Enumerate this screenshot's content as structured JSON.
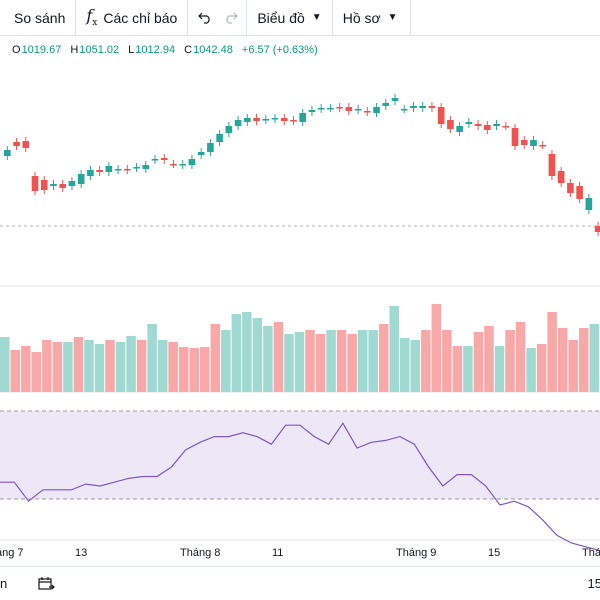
{
  "toolbar": {
    "compare_label": "So sánh",
    "indicators_label": "Các chỉ báo",
    "chart_label": "Biểu đồ",
    "profile_label": "Hồ sơ"
  },
  "ohlc": {
    "open_key": "O",
    "open": "1019.67",
    "high_key": "H",
    "high": "1051.02",
    "low_key": "L",
    "low": "1012.94",
    "close_key": "C",
    "close": "1042.48",
    "change": "+6.57 (+0.63%)"
  },
  "time_axis": [
    "áng 7",
    "13",
    "Tháng 8",
    "11",
    "Tháng 9",
    "15",
    "Thá"
  ],
  "bottom": {
    "left_fragment": "n",
    "right_fragment": "15"
  },
  "colors": {
    "up": "#26a69a",
    "down": "#ef5350",
    "up_volume": "#9fd9d2",
    "down_volume": "#f8a8a8",
    "rsi_line": "#7e57c2",
    "rsi_band": "#ede7f6"
  },
  "chart_data": {
    "type": "candlestick",
    "candles": [
      {
        "o": 0.8,
        "c": 0.86,
        "up": true
      },
      {
        "o": 0.94,
        "c": 0.9,
        "up": false
      },
      {
        "o": 0.95,
        "c": 0.88,
        "up": false
      },
      {
        "o": 0.6,
        "c": 0.45,
        "up": false
      },
      {
        "o": 0.56,
        "c": 0.46,
        "up": false
      },
      {
        "o": 0.5,
        "c": 0.52,
        "up": true
      },
      {
        "o": 0.48,
        "c": 0.52,
        "up": false
      },
      {
        "o": 0.5,
        "c": 0.55,
        "up": true
      },
      {
        "o": 0.52,
        "c": 0.62,
        "up": true
      },
      {
        "o": 0.6,
        "c": 0.66,
        "up": true
      },
      {
        "o": 0.66,
        "c": 0.64,
        "up": false
      },
      {
        "o": 0.64,
        "c": 0.7,
        "up": true
      },
      {
        "o": 0.66,
        "c": 0.67,
        "up": true
      },
      {
        "o": 0.67,
        "c": 0.66,
        "up": false
      },
      {
        "o": 0.68,
        "c": 0.69,
        "up": true
      },
      {
        "o": 0.67,
        "c": 0.71,
        "up": true
      },
      {
        "o": 0.76,
        "c": 0.77,
        "up": true
      },
      {
        "o": 0.78,
        "c": 0.76,
        "up": false
      },
      {
        "o": 0.72,
        "c": 0.72,
        "up": false
      },
      {
        "o": 0.71,
        "c": 0.72,
        "up": true
      },
      {
        "o": 0.71,
        "c": 0.77,
        "up": true
      },
      {
        "o": 0.81,
        "c": 0.84,
        "up": true
      },
      {
        "o": 0.84,
        "c": 0.93,
        "up": true
      },
      {
        "o": 0.94,
        "c": 1.02,
        "up": true
      },
      {
        "o": 1.03,
        "c": 1.1,
        "up": true
      },
      {
        "o": 1.1,
        "c": 1.16,
        "up": true
      },
      {
        "o": 1.14,
        "c": 1.18,
        "up": true
      },
      {
        "o": 1.18,
        "c": 1.15,
        "up": false
      },
      {
        "o": 1.16,
        "c": 1.17,
        "up": true
      },
      {
        "o": 1.17,
        "c": 1.18,
        "up": true
      },
      {
        "o": 1.18,
        "c": 1.15,
        "up": false
      },
      {
        "o": 1.16,
        "c": 1.15,
        "up": false
      },
      {
        "o": 1.14,
        "c": 1.23,
        "up": true
      },
      {
        "o": 1.24,
        "c": 1.26,
        "up": true
      },
      {
        "o": 1.27,
        "c": 1.28,
        "up": true
      },
      {
        "o": 1.28,
        "c": 1.28,
        "up": true
      },
      {
        "o": 1.28,
        "c": 1.29,
        "up": false
      },
      {
        "o": 1.29,
        "c": 1.25,
        "up": false
      },
      {
        "o": 1.26,
        "c": 1.27,
        "up": true
      },
      {
        "o": 1.25,
        "c": 1.24,
        "up": false
      },
      {
        "o": 1.23,
        "c": 1.29,
        "up": true
      },
      {
        "o": 1.3,
        "c": 1.33,
        "up": true
      },
      {
        "o": 1.35,
        "c": 1.38,
        "up": true
      },
      {
        "o": 1.27,
        "c": 1.27,
        "up": true
      },
      {
        "o": 1.28,
        "c": 1.3,
        "up": true
      },
      {
        "o": 1.28,
        "c": 1.3,
        "up": true
      },
      {
        "o": 1.3,
        "c": 1.28,
        "up": false
      },
      {
        "o": 1.29,
        "c": 1.12,
        "up": false
      },
      {
        "o": 1.16,
        "c": 1.07,
        "up": false
      },
      {
        "o": 1.04,
        "c": 1.1,
        "up": true
      },
      {
        "o": 1.12,
        "c": 1.14,
        "up": true
      },
      {
        "o": 1.12,
        "c": 1.1,
        "up": false
      },
      {
        "o": 1.11,
        "c": 1.06,
        "up": false
      },
      {
        "o": 1.1,
        "c": 1.12,
        "up": true
      },
      {
        "o": 1.1,
        "c": 1.1,
        "up": false
      },
      {
        "o": 1.08,
        "c": 0.9,
        "up": false
      },
      {
        "o": 0.96,
        "c": 0.91,
        "up": false
      },
      {
        "o": 0.9,
        "c": 0.96,
        "up": true
      },
      {
        "o": 0.91,
        "c": 0.91,
        "up": false
      },
      {
        "o": 0.82,
        "c": 0.6,
        "up": false
      },
      {
        "o": 0.65,
        "c": 0.53,
        "up": false
      },
      {
        "o": 0.53,
        "c": 0.43,
        "up": false
      },
      {
        "o": 0.5,
        "c": 0.37,
        "up": false
      },
      {
        "o": 0.38,
        "c": 0.26,
        "up": true
      },
      {
        "o": 0.1,
        "c": 0.04,
        "up": false
      }
    ],
    "volume": [
      {
        "v": 0.55,
        "up": true
      },
      {
        "v": 0.42,
        "up": false
      },
      {
        "v": 0.46,
        "up": false
      },
      {
        "v": 0.4,
        "up": false
      },
      {
        "v": 0.52,
        "up": false
      },
      {
        "v": 0.5,
        "up": false
      },
      {
        "v": 0.5,
        "up": true
      },
      {
        "v": 0.55,
        "up": false
      },
      {
        "v": 0.52,
        "up": true
      },
      {
        "v": 0.48,
        "up": true
      },
      {
        "v": 0.52,
        "up": false
      },
      {
        "v": 0.5,
        "up": true
      },
      {
        "v": 0.56,
        "up": true
      },
      {
        "v": 0.52,
        "up": false
      },
      {
        "v": 0.68,
        "up": true
      },
      {
        "v": 0.52,
        "up": true
      },
      {
        "v": 0.5,
        "up": false
      },
      {
        "v": 0.45,
        "up": false
      },
      {
        "v": 0.44,
        "up": false
      },
      {
        "v": 0.45,
        "up": false
      },
      {
        "v": 0.68,
        "up": false
      },
      {
        "v": 0.62,
        "up": true
      },
      {
        "v": 0.78,
        "up": true
      },
      {
        "v": 0.8,
        "up": true
      },
      {
        "v": 0.74,
        "up": true
      },
      {
        "v": 0.66,
        "up": true
      },
      {
        "v": 0.7,
        "up": false
      },
      {
        "v": 0.58,
        "up": true
      },
      {
        "v": 0.6,
        "up": true
      },
      {
        "v": 0.62,
        "up": false
      },
      {
        "v": 0.58,
        "up": false
      },
      {
        "v": 0.62,
        "up": true
      },
      {
        "v": 0.62,
        "up": false
      },
      {
        "v": 0.58,
        "up": false
      },
      {
        "v": 0.62,
        "up": true
      },
      {
        "v": 0.62,
        "up": true
      },
      {
        "v": 0.68,
        "up": false
      },
      {
        "v": 0.86,
        "up": true
      },
      {
        "v": 0.54,
        "up": true
      },
      {
        "v": 0.52,
        "up": true
      },
      {
        "v": 0.62,
        "up": false
      },
      {
        "v": 0.88,
        "up": false
      },
      {
        "v": 0.62,
        "up": false
      },
      {
        "v": 0.46,
        "up": false
      },
      {
        "v": 0.46,
        "up": true
      },
      {
        "v": 0.6,
        "up": false
      },
      {
        "v": 0.66,
        "up": false
      },
      {
        "v": 0.46,
        "up": true
      },
      {
        "v": 0.62,
        "up": false
      },
      {
        "v": 0.7,
        "up": false
      },
      {
        "v": 0.44,
        "up": true
      },
      {
        "v": 0.48,
        "up": false
      },
      {
        "v": 0.8,
        "up": false
      },
      {
        "v": 0.64,
        "up": false
      },
      {
        "v": 0.52,
        "up": false
      },
      {
        "v": 0.64,
        "up": false
      },
      {
        "v": 0.68,
        "up": true
      }
    ],
    "rsi": [
      0.62,
      0.62,
      0.52,
      0.58,
      0.58,
      0.58,
      0.61,
      0.6,
      0.62,
      0.64,
      0.65,
      0.65,
      0.7,
      0.79,
      0.83,
      0.86,
      0.86,
      0.88,
      0.86,
      0.82,
      0.92,
      0.92,
      0.86,
      0.82,
      0.93,
      0.8,
      0.83,
      0.84,
      0.86,
      0.82,
      0.7,
      0.6,
      0.66,
      0.66,
      0.6,
      0.5,
      0.52,
      0.49,
      0.42,
      0.34,
      0.3,
      0.28,
      0.26
    ],
    "x_ticks": [
      "áng 7",
      "13",
      "Tháng 8",
      "11",
      "Tháng 9",
      "15",
      "Thá"
    ]
  }
}
